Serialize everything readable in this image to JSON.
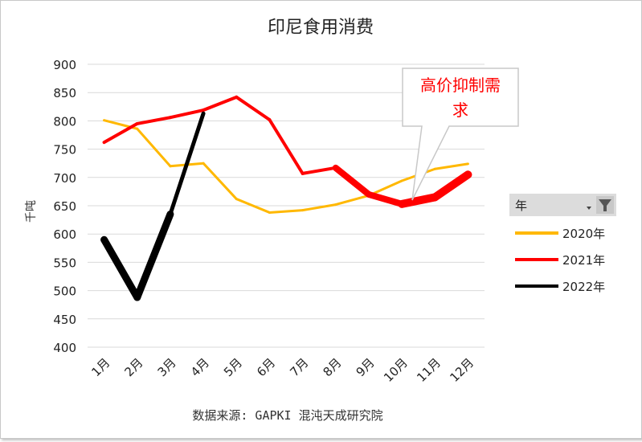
{
  "chart_data": {
    "type": "line",
    "title": "印尼食用消费",
    "ylabel": "千吨",
    "xlabel": "",
    "ylim": [
      400,
      900
    ],
    "yticks": [
      400,
      450,
      500,
      550,
      600,
      650,
      700,
      750,
      800,
      850,
      900
    ],
    "grid": true,
    "categories": [
      "1月",
      "2月",
      "3月",
      "4月",
      "5月",
      "6月",
      "7月",
      "8月",
      "9月",
      "10月",
      "11月",
      "12月"
    ],
    "series": [
      {
        "name": "2020年",
        "color": "#FFB800",
        "values": [
          801,
          786,
          720,
          725,
          662,
          638,
          642,
          652,
          668,
          694,
          715,
          724
        ]
      },
      {
        "name": "2021年",
        "color": "#FF0000",
        "values": [
          762,
          795,
          806,
          819,
          842,
          802,
          707,
          717,
          670,
          653,
          665,
          705
        ]
      },
      {
        "name": "2022年",
        "color": "#000000",
        "values": [
          590,
          488,
          635,
          813,
          null,
          null,
          null,
          null,
          null,
          null,
          null,
          null
        ]
      }
    ],
    "annotation": {
      "text_line1": "高价抑制需",
      "text_line2": "求"
    },
    "legend": {
      "title": "年",
      "placement": "right"
    },
    "source": "数据来源: GAPKI 混沌天成研究院"
  }
}
